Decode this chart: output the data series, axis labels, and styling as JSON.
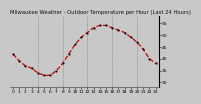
{
  "title": "Milwaukee Weather - Outdoor Temperature per Hour (Last 24 Hours)",
  "hours": [
    0,
    1,
    2,
    3,
    4,
    5,
    6,
    7,
    8,
    9,
    10,
    11,
    12,
    13,
    14,
    15,
    16,
    17,
    18,
    19,
    20,
    21,
    22,
    23
  ],
  "temps": [
    42,
    39,
    37,
    36,
    34,
    33,
    33,
    35,
    38,
    42,
    46,
    49,
    51,
    53,
    54,
    54,
    53,
    52,
    51,
    49,
    47,
    44,
    40,
    38
  ],
  "line_color": "#cc0000",
  "marker_color": "#111111",
  "bg_color": "#c8c8c8",
  "plot_bg_color": "#c8c8c8",
  "grid_color": "#888888",
  "title_color": "#111111",
  "ylim_min": 28,
  "ylim_max": 58,
  "yticks": [
    30,
    35,
    40,
    45,
    50,
    55
  ],
  "ytick_labels": [
    "30",
    "35",
    "40",
    "45",
    "50",
    "55"
  ],
  "xticks": [
    0,
    1,
    2,
    3,
    4,
    5,
    6,
    7,
    8,
    9,
    10,
    11,
    12,
    13,
    14,
    15,
    16,
    17,
    18,
    19,
    20,
    21,
    22,
    23
  ],
  "xtick_labels": [
    "0",
    "1",
    "2",
    "3",
    "4",
    "5",
    "6",
    "7",
    "8",
    "9",
    "10",
    "11",
    "12",
    "13",
    "14",
    "15",
    "16",
    "17",
    "18",
    "19",
    "20",
    "21",
    "22",
    "23"
  ],
  "vgrid_hours": [
    4,
    8,
    12,
    16,
    20
  ],
  "title_fontsize": 3.8,
  "tick_fontsize": 3.2,
  "line_width": 0.9,
  "marker_size": 2.5
}
